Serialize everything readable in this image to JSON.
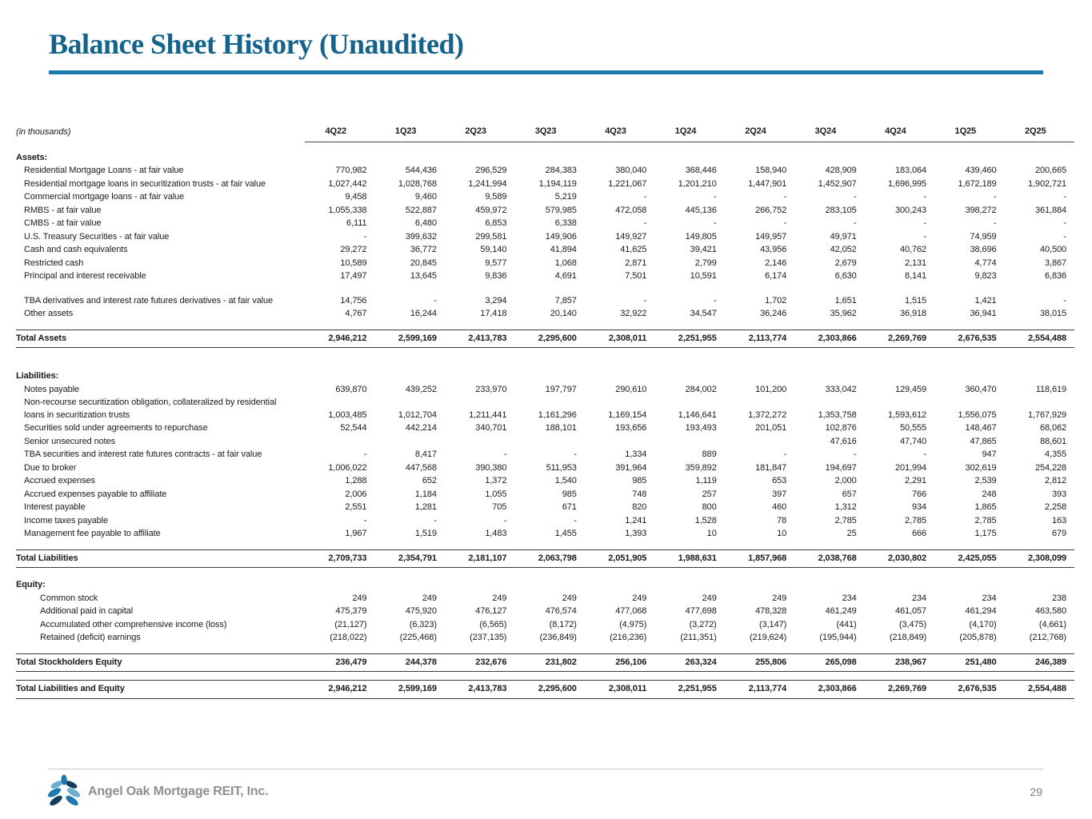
{
  "page": {
    "title": "Balance Sheet History (Unaudited)",
    "footer": {
      "company": "Angel Oak Mortgage REIT, Inc.",
      "page_number": "29",
      "logo_icon": "angel-oak-logo"
    }
  },
  "theme": {
    "title_blue": "#15638c",
    "accent_blue": "#1b7ab2",
    "footer_gray": "#8f8f8f"
  },
  "table": {
    "units_label": "(in thousands)",
    "columns": [
      "4Q22",
      "1Q23",
      "2Q23",
      "3Q23",
      "4Q23",
      "1Q24",
      "2Q24",
      "3Q24",
      "4Q24",
      "1Q25",
      "2Q25"
    ],
    "rows": [
      {
        "type": "spacer",
        "size": 12
      },
      {
        "type": "section",
        "label": "Assets:"
      },
      {
        "type": "item",
        "indent": 1,
        "label": "Residential Mortgage Loans - at fair value",
        "values": [
          "770,982",
          "544,436",
          "296,529",
          "284,383",
          "380,040",
          "368,446",
          "158,940",
          "428,909",
          "183,064",
          "439,460",
          "200,665"
        ]
      },
      {
        "type": "item",
        "indent": 1,
        "label": "Residential mortgage loans in securitization trusts - at fair value",
        "values": [
          "1,027,442",
          "1,028,768",
          "1,241,994",
          "1,194,119",
          "1,221,067",
          "1,201,210",
          "1,447,901",
          "1,452,907",
          "1,696,995",
          "1,672,189",
          "1,902,721"
        ]
      },
      {
        "type": "item",
        "indent": 1,
        "label": "Commercial mortgage loans - at fair value",
        "values": [
          "9,458",
          "9,460",
          "9,589",
          "5,219",
          "-",
          "-",
          "-",
          "-",
          "-",
          "-",
          "-"
        ]
      },
      {
        "type": "item",
        "indent": 1,
        "label": "RMBS - at fair value",
        "values": [
          "1,055,338",
          "522,887",
          "459,972",
          "579,985",
          "472,058",
          "445,136",
          "266,752",
          "283,105",
          "300,243",
          "398,272",
          "361,884"
        ]
      },
      {
        "type": "item",
        "indent": 1,
        "label": "CMBS - at fair value",
        "values": [
          "6,111",
          "6,480",
          "6,853",
          "6,338",
          "-",
          "-",
          "-",
          "-",
          "-",
          "-",
          "-"
        ]
      },
      {
        "type": "item",
        "indent": 1,
        "label": "U.S. Treasury Securities - at fair value",
        "values": [
          "-",
          "399,632",
          "299,581",
          "149,906",
          "149,927",
          "149,805",
          "149,957",
          "49,971",
          "-",
          "74,959",
          "-"
        ]
      },
      {
        "type": "item",
        "indent": 1,
        "label": "Cash and cash equivalents",
        "values": [
          "29,272",
          "36,772",
          "59,140",
          "41,894",
          "41,625",
          "39,421",
          "43,956",
          "42,052",
          "40,762",
          "38,696",
          "40,500"
        ]
      },
      {
        "type": "item",
        "indent": 1,
        "label": "Restricted cash",
        "values": [
          "10,589",
          "20,845",
          "9,577",
          "1,068",
          "2,871",
          "2,799",
          "2,146",
          "2,679",
          "2,131",
          "4,774",
          "3,867"
        ]
      },
      {
        "type": "item",
        "indent": 1,
        "label": "Principal and interest receivable",
        "values": [
          "17,497",
          "13,645",
          "9,836",
          "4,691",
          "7,501",
          "10,591",
          "6,174",
          "6,630",
          "8,141",
          "9,823",
          "6,836"
        ]
      },
      {
        "type": "spacer",
        "size": 14
      },
      {
        "type": "item",
        "indent": 1,
        "label": "TBA derivatives and interest rate futures derivatives - at fair value",
        "values": [
          "14,756",
          "-",
          "3,294",
          "7,857",
          "-",
          "-",
          "1,702",
          "1,651",
          "1,515",
          "1,421",
          "-"
        ]
      },
      {
        "type": "item",
        "indent": 1,
        "label": "Other assets",
        "values": [
          "4,767",
          "16,244",
          "17,418",
          "20,140",
          "32,922",
          "34,547",
          "36,246",
          "35,962",
          "36,918",
          "36,941",
          "38,015"
        ]
      },
      {
        "type": "spacer",
        "size": 10
      },
      {
        "type": "total",
        "label": "Total Assets",
        "values": [
          "2,946,212",
          "2,599,169",
          "2,413,783",
          "2,295,600",
          "2,308,011",
          "2,251,955",
          "2,113,774",
          "2,303,866",
          "2,269,769",
          "2,676,535",
          "2,554,488"
        ]
      },
      {
        "type": "spacer",
        "size": 28
      },
      {
        "type": "section",
        "label": "Liabilities:"
      },
      {
        "type": "item",
        "indent": 1,
        "label": "Notes payable",
        "values": [
          "639,870",
          "439,252",
          "233,970",
          "197,797",
          "290,610",
          "284,002",
          "101,200",
          "333,042",
          "129,459",
          "360,470",
          "118,619"
        ]
      },
      {
        "type": "item",
        "indent": 1,
        "label": "Non-recourse securitization obligation, collateralized by residential\nloans in securitization trusts",
        "values": [
          "1,003,485",
          "1,012,704",
          "1,211,441",
          "1,161,296",
          "1,169,154",
          "1,146,641",
          "1,372,272",
          "1,353,758",
          "1,593,612",
          "1,556,075",
          "1,767,929"
        ]
      },
      {
        "type": "item",
        "indent": 1,
        "label": "Securities sold under agreements to repurchase",
        "values": [
          "52,544",
          "442,214",
          "340,701",
          "188,101",
          "193,656",
          "193,493",
          "201,051",
          "102,876",
          "50,555",
          "148,467",
          "68,062"
        ]
      },
      {
        "type": "item",
        "indent": 1,
        "label": "Senior unsecured notes",
        "values": [
          "",
          "",
          "",
          "",
          "",
          "",
          "",
          "47,616",
          "47,740",
          "47,865",
          "88,601"
        ]
      },
      {
        "type": "item",
        "indent": 1,
        "label": "TBA securities and interest rate futures contracts - at fair value",
        "values": [
          "-",
          "8,417",
          "-",
          "-",
          "1,334",
          "889",
          "-",
          "-",
          "-",
          "947",
          "4,355"
        ]
      },
      {
        "type": "item",
        "indent": 1,
        "label": "Due to broker",
        "values": [
          "1,006,022",
          "447,568",
          "390,380",
          "511,953",
          "391,964",
          "359,892",
          "181,847",
          "194,697",
          "201,994",
          "302,619",
          "254,228"
        ]
      },
      {
        "type": "item",
        "indent": 1,
        "label": "Accrued expenses",
        "values": [
          "1,288",
          "652",
          "1,372",
          "1,540",
          "985",
          "1,119",
          "653",
          "2,000",
          "2,291",
          "2,539",
          "2,812"
        ]
      },
      {
        "type": "item",
        "indent": 1,
        "label": "Accrued expenses payable to affiliate",
        "values": [
          "2,006",
          "1,184",
          "1,055",
          "985",
          "748",
          "257",
          "397",
          "657",
          "766",
          "248",
          "393"
        ]
      },
      {
        "type": "item",
        "indent": 1,
        "label": "Interest payable",
        "values": [
          "2,551",
          "1,281",
          "705",
          "671",
          "820",
          "800",
          "460",
          "1,312",
          "934",
          "1,865",
          "2,258"
        ]
      },
      {
        "type": "item",
        "indent": 1,
        "label": "Income taxes payable",
        "values": [
          "-",
          "-",
          "-",
          "-",
          "1,241",
          "1,528",
          "78",
          "2,785",
          "2,785",
          "2,785",
          "163"
        ]
      },
      {
        "type": "item",
        "indent": 1,
        "label": "Management fee payable to affiliate",
        "values": [
          "1,967",
          "1,519",
          "1,483",
          "1,455",
          "1,393",
          "10",
          "10",
          "25",
          "666",
          "1,175",
          "679"
        ]
      },
      {
        "type": "spacer",
        "size": 10
      },
      {
        "type": "total",
        "label": "Total Liabilities",
        "values": [
          "2,709,733",
          "2,354,791",
          "2,181,107",
          "2,063,798",
          "2,051,905",
          "1,988,631",
          "1,857,968",
          "2,038,768",
          "2,030,802",
          "2,425,055",
          "2,308,099"
        ]
      },
      {
        "type": "spacer",
        "size": 14
      },
      {
        "type": "section",
        "label": "Equity:"
      },
      {
        "type": "item",
        "indent": 2,
        "label": "Common stock",
        "values": [
          "249",
          "249",
          "249",
          "249",
          "249",
          "249",
          "249",
          "234",
          "234",
          "234",
          "238"
        ]
      },
      {
        "type": "item",
        "indent": 2,
        "label": "Additional paid in capital",
        "values": [
          "475,379",
          "475,920",
          "476,127",
          "476,574",
          "477,068",
          "477,698",
          "478,328",
          "461,249",
          "461,057",
          "461,294",
          "463,580"
        ]
      },
      {
        "type": "item",
        "indent": 2,
        "label": "Accumulated other comprehensive income (loss)",
        "values": [
          "(21,127)",
          "(6,323)",
          "(6,565)",
          "(8,172)",
          "(4,975)",
          "(3,272)",
          "(3,147)",
          "(441)",
          "(3,475)",
          "(4,170)",
          "(4,661)"
        ]
      },
      {
        "type": "item",
        "indent": 2,
        "label": "Retained (deficit) earnings",
        "values": [
          "(218,022)",
          "(225,468)",
          "(237,135)",
          "(236,849)",
          "(216,236)",
          "(211,351)",
          "(219,624)",
          "(195,944)",
          "(218,849)",
          "(205,878)",
          "(212,768)"
        ]
      },
      {
        "type": "spacer",
        "size": 10
      },
      {
        "type": "total",
        "label": "Total Stockholders Equity",
        "values": [
          "236,479",
          "244,378",
          "232,676",
          "231,802",
          "256,106",
          "263,324",
          "255,806",
          "265,098",
          "238,967",
          "251,480",
          "246,389"
        ]
      },
      {
        "type": "spacer",
        "size": 10
      },
      {
        "type": "total",
        "label": "Total Liabilities and Equity",
        "values": [
          "2,946,212",
          "2,599,169",
          "2,413,783",
          "2,295,600",
          "2,308,011",
          "2,251,955",
          "2,113,774",
          "2,303,866",
          "2,269,769",
          "2,676,535",
          "2,554,488"
        ]
      }
    ]
  }
}
